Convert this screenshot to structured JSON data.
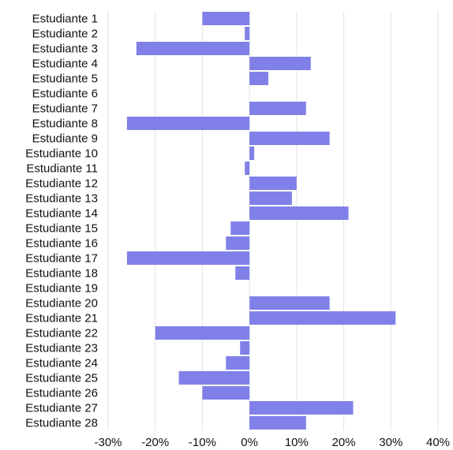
{
  "chart_data": {
    "type": "bar",
    "orientation": "horizontal",
    "categories": [
      "Estudiante 1",
      "Estudiante 2",
      "Estudiante 3",
      "Estudiante 4",
      "Estudiante 5",
      "Estudiante 6",
      "Estudiante 7",
      "Estudiante 8",
      "Estudiante 9",
      "Estudiante 10",
      "Estudiante 11",
      "Estudiante 12",
      "Estudiante 13",
      "Estudiante 14",
      "Estudiante 15",
      "Estudiante 16",
      "Estudiante 17",
      "Estudiante 18",
      "Estudiante 19",
      "Estudiante 20",
      "Estudiante 21",
      "Estudiante 22",
      "Estudiante 23",
      "Estudiante 24",
      "Estudiante 25",
      "Estudiante 26",
      "Estudiante 27",
      "Estudiante 28"
    ],
    "values": [
      -10,
      -1,
      -24,
      13,
      4,
      0,
      12,
      -26,
      17,
      1,
      -1,
      10,
      9,
      21,
      -4,
      -5,
      -26,
      -3,
      0,
      17,
      31,
      -20,
      -2,
      -5,
      -15,
      -10,
      22,
      12
    ],
    "value_unit": "%",
    "xlim": [
      -30,
      40
    ],
    "xticks": [
      -30,
      -20,
      -10,
      0,
      10,
      20,
      30,
      40
    ],
    "xtick_labels": [
      "-30%",
      "-20%",
      "-10%",
      "0%",
      "10%",
      "20%",
      "30%",
      "40%"
    ],
    "title": "",
    "xlabel": "",
    "ylabel": "",
    "grid": "vertical",
    "bar_color": "#8080e8"
  }
}
